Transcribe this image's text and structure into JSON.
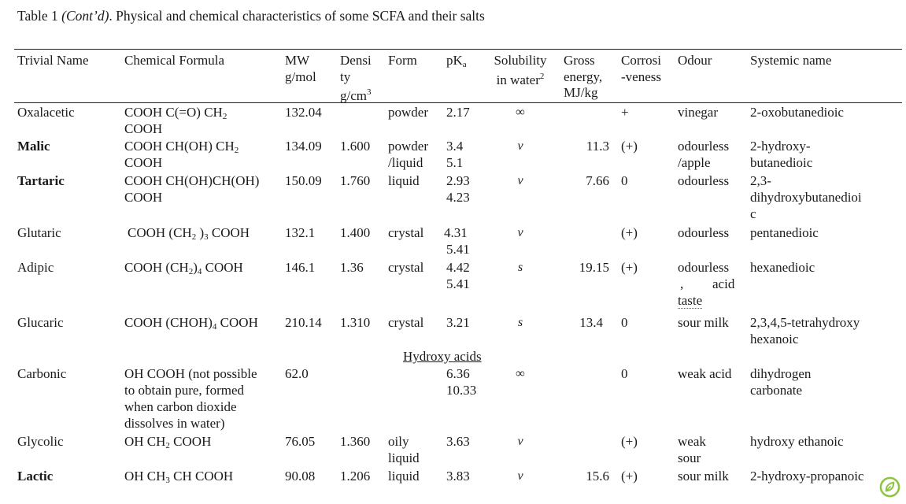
{
  "caption": {
    "prefix": "Table 1 ",
    "italic": "(Cont’d)",
    "suffix": ". Physical and chemical characteristics of some SCFA and their salts"
  },
  "headers": {
    "trivial": "Trivial Name",
    "formula": "Chemical Formula",
    "mw": [
      "MW",
      "g/mol"
    ],
    "density": [
      "Densi",
      "ty",
      "g/cm"
    ],
    "density_sup": "3",
    "form": "Form",
    "pka": "pK",
    "pka_sub": "a",
    "solubility": [
      "Solubility",
      "in water"
    ],
    "solubility_sup": "2",
    "gross": [
      "Gross",
      "energy,",
      "MJ/kg"
    ],
    "corrosiveness": [
      "Corrosi",
      "-veness"
    ],
    "odour": "Odour",
    "systemic": "Systemic name"
  },
  "section_label": "Hydroxy acids",
  "rows": {
    "oxalacetic": {
      "name": "Oxalacetic",
      "formula": [
        "COOH C(=O) CH",
        "COOH"
      ],
      "formula_sub": "2",
      "mw": "132.04",
      "density": "",
      "form": [
        "powder"
      ],
      "pka": [
        "2.17"
      ],
      "solubility": "∞",
      "energy": "",
      "corrosion": "+",
      "odour": [
        "vinegar"
      ],
      "systemic": [
        "2-oxobutanedioic"
      ]
    },
    "malic": {
      "name": "Malic",
      "formula": [
        "COOH CH(OH) CH",
        "COOH"
      ],
      "formula_sub": "2",
      "mw": "134.09",
      "density": "1.600",
      "form": [
        "powder",
        "/liquid"
      ],
      "pka": [
        "3.4",
        "5.1"
      ],
      "solubility": "v",
      "energy": "11.3",
      "corrosion": "(+)",
      "odour": [
        "odourless",
        "/apple"
      ],
      "systemic": [
        "2-hydroxy-",
        "butanedioic"
      ]
    },
    "tartaric": {
      "name": "Tartaric",
      "formula": [
        "COOH CH(OH)CH(OH)",
        "COOH"
      ],
      "mw": "150.09",
      "density": "1.760",
      "form": [
        "liquid"
      ],
      "pka": [
        "2.93",
        "4.23"
      ],
      "solubility": "v",
      "energy": "7.66",
      "corrosion": "0",
      "odour": [
        "odourless"
      ],
      "systemic": [
        "2,3-",
        "dihydroxybutanedioi",
        "c"
      ]
    },
    "glutaric": {
      "name": "Glutaric",
      "formula": [
        "COOH (CH",
        " )",
        " COOH"
      ],
      "formula_sub": "2",
      "formula_sub2": "3",
      "mw": "132.1",
      "density": "1.400",
      "form": [
        "crystal"
      ],
      "pka": [
        "4.31",
        "5.41"
      ],
      "solubility": "v",
      "energy": "",
      "corrosion": "(+)",
      "odour": [
        "odourless"
      ],
      "systemic": [
        "pentanedioic"
      ]
    },
    "adipic": {
      "name": "Adipic",
      "formula": [
        "COOH (CH",
        ")",
        " COOH"
      ],
      "formula_sub": "2",
      "formula_sub2": "4",
      "mw": "146.1",
      "density": "1.36",
      "form": [
        "crystal"
      ],
      "pka": [
        "4.42",
        "5.41"
      ],
      "solubility": "s",
      "energy": "19.15",
      "corrosion": "(+)",
      "odour": [
        "odourless",
        ",",
        "acid",
        "taste"
      ],
      "systemic": [
        "hexanedioic"
      ]
    },
    "glucaric": {
      "name": "Glucaric",
      "formula": [
        "COOH (CHOH)",
        " COOH"
      ],
      "formula_sub": "4",
      "mw": "210.14",
      "density": "1.310",
      "form": [
        "crystal"
      ],
      "pka": [
        "3.21"
      ],
      "solubility": "s",
      "energy": "13.4",
      "corrosion": "0",
      "odour": [
        "sour milk"
      ],
      "systemic": [
        "2,3,4,5-tetrahydroxy",
        "hexanoic"
      ]
    },
    "carbonic": {
      "name": "Carbonic",
      "formula": [
        "OH COOH (not possible",
        "to obtain pure, formed",
        "when carbon dioxide",
        "dissolves in water)"
      ],
      "mw": "62.0",
      "density": "",
      "form": [
        ""
      ],
      "pka": [
        "6.36",
        "10.33"
      ],
      "solubility": "∞",
      "energy": "",
      "corrosion": "0",
      "odour": [
        "weak acid"
      ],
      "systemic": [
        "dihydrogen",
        "carbonate"
      ]
    },
    "glycolic": {
      "name": "Glycolic",
      "formula": [
        "OH CH",
        " COOH"
      ],
      "formula_sub": "2",
      "mw": "76.05",
      "density": "1.360",
      "form": [
        "oily",
        "liquid"
      ],
      "pka": [
        "3.63"
      ],
      "solubility": "v",
      "energy": "",
      "corrosion": "(+)",
      "odour": [
        "weak",
        "sour"
      ],
      "systemic": [
        "hydroxy ethanoic"
      ]
    },
    "lactic": {
      "name": "Lactic",
      "formula": [
        "OH CH",
        " CH COOH"
      ],
      "formula_sub": "3",
      "mw": "90.08",
      "density": "1.206",
      "form": [
        "liquid"
      ],
      "pka": [
        "3.83"
      ],
      "solubility": "v",
      "energy": "15.6",
      "corrosion": "(+)",
      "odour": [
        "sour milk"
      ],
      "systemic": [
        "2-hydroxy-propanoic"
      ]
    }
  },
  "logo_icon": "leaf-badge-icon",
  "colors": {
    "logo": "#8cc63f"
  }
}
